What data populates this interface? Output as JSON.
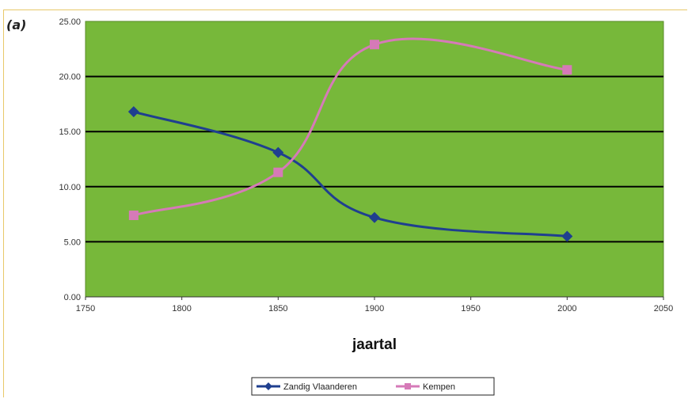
{
  "panel_label": "(a)",
  "colors": {
    "plot_bg": "#77b83a",
    "series1": "#1f3f8f",
    "series2": "#d67ab8",
    "grid": "#000000"
  },
  "chart_data": {
    "type": "line",
    "xlabel": "jaartal",
    "ylabel": "",
    "xlim": [
      1750,
      2050
    ],
    "ylim": [
      0,
      25
    ],
    "x_ticks": [
      "1750",
      "1800",
      "1850",
      "1900",
      "1950",
      "2000",
      "2050"
    ],
    "y_ticks": [
      "0.00",
      "5.00",
      "10.00",
      "15.00",
      "20.00",
      "25.00"
    ],
    "grid": "horizontal",
    "legend_position": "bottom",
    "series": [
      {
        "name": "Zandig Vlaanderen",
        "marker": "diamond",
        "color": "#1f3f8f",
        "x": [
          1775,
          1850,
          1900,
          2000
        ],
        "y": [
          16.8,
          13.1,
          7.2,
          5.5
        ]
      },
      {
        "name": "Kempen",
        "marker": "square",
        "color": "#d67ab8",
        "x": [
          1775,
          1850,
          1900,
          2000
        ],
        "y": [
          7.4,
          11.3,
          22.9,
          20.6
        ]
      }
    ]
  }
}
